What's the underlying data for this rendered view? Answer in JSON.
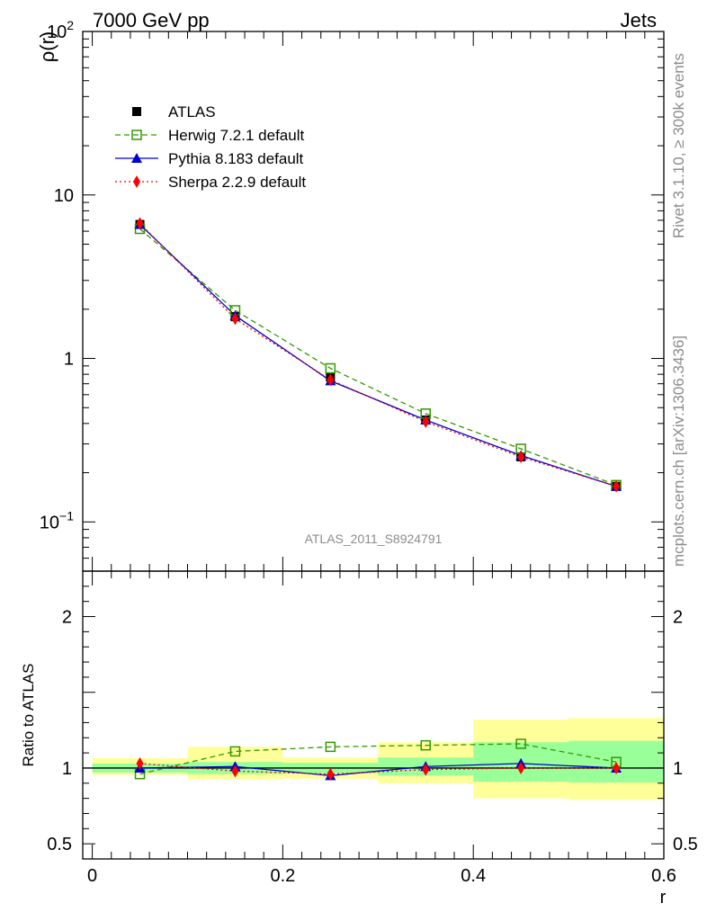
{
  "header": {
    "left_title": "7000 GeV pp",
    "right_title": "Jets"
  },
  "side_texts": {
    "rivet": "Rivet 3.1.10, ≥ 300k events",
    "source": "mcplots.cern.ch [arXiv:1306.3436]"
  },
  "analysis_label": "ATLAS_2011_S8924791",
  "colors": {
    "atlas": "#000000",
    "herwig": "#339900",
    "pythia": "#0000cc",
    "sherpa": "#ff0000",
    "band_inner": "#99ff99",
    "band_outer": "#ffff99"
  },
  "legend": [
    {
      "key": "atlas",
      "label": "ATLAS"
    },
    {
      "key": "herwig",
      "label": "Herwig 7.2.1 default"
    },
    {
      "key": "pythia",
      "label": "Pythia 8.183 default"
    },
    {
      "key": "sherpa",
      "label": "Sherpa 2.2.9 default"
    }
  ],
  "chart_data": [
    {
      "type": "line",
      "panel": "main",
      "yscale": "log",
      "ylabel": "ρ(r)",
      "ylim": [
        0.05,
        100
      ],
      "xlim": [
        -0.01,
        0.6
      ],
      "yticks": [
        {
          "value": 0.1,
          "label": "10",
          "sup": "−1"
        },
        {
          "value": 1,
          "label": "1",
          "sup": ""
        },
        {
          "value": 10,
          "label": "10",
          "sup": ""
        },
        {
          "value": 100,
          "label": "10",
          "sup": "2"
        }
      ],
      "x": [
        0.05,
        0.15,
        0.25,
        0.35,
        0.45,
        0.55
      ],
      "series": [
        {
          "key": "atlas",
          "name": "ATLAS",
          "values": [
            6.6,
            1.8,
            0.77,
            0.42,
            0.25,
            0.165
          ]
        },
        {
          "key": "herwig",
          "name": "Herwig 7.2.1 default",
          "values": [
            6.2,
            1.97,
            0.87,
            0.46,
            0.28,
            0.168
          ]
        },
        {
          "key": "pythia",
          "name": "Pythia 8.183 default",
          "values": [
            6.6,
            1.83,
            0.73,
            0.42,
            0.255,
            0.165
          ]
        },
        {
          "key": "sherpa",
          "name": "Sherpa 2.2.9 default",
          "values": [
            6.7,
            1.75,
            0.74,
            0.41,
            0.25,
            0.165
          ]
        }
      ]
    },
    {
      "type": "line",
      "panel": "ratio",
      "ylabel": "Ratio to ATLAS",
      "xlabel": "r",
      "ylim": [
        0.4,
        2.3
      ],
      "xlim": [
        -0.01,
        0.6
      ],
      "yticks": [
        {
          "value": 0.5,
          "label": "0.5"
        },
        {
          "value": 1,
          "label": "1"
        },
        {
          "value": 2,
          "label": "2"
        }
      ],
      "xticks": [
        {
          "value": 0,
          "label": "0"
        },
        {
          "value": 0.2,
          "label": "0.2"
        },
        {
          "value": 0.4,
          "label": "0.4"
        },
        {
          "value": 0.6,
          "label": "0.6"
        }
      ],
      "bin_edges": [
        0.0,
        0.1,
        0.2,
        0.3,
        0.4,
        0.5,
        0.6
      ],
      "band_inner": [
        [
          0.97,
          1.03
        ],
        [
          0.96,
          1.04
        ],
        [
          0.965,
          1.035
        ],
        [
          0.95,
          1.07
        ],
        [
          0.91,
          1.17
        ],
        [
          0.905,
          1.18
        ]
      ],
      "band_outer": [
        [
          0.955,
          1.065
        ],
        [
          0.925,
          1.14
        ],
        [
          0.93,
          1.07
        ],
        [
          0.9,
          1.17
        ],
        [
          0.8,
          1.32
        ],
        [
          0.79,
          1.33
        ]
      ],
      "x": [
        0.05,
        0.15,
        0.25,
        0.35,
        0.45,
        0.55
      ],
      "series": [
        {
          "key": "herwig",
          "name": "Herwig 7.2.1 default",
          "values": [
            0.96,
            1.11,
            1.14,
            1.15,
            1.16,
            1.04
          ]
        },
        {
          "key": "pythia",
          "name": "Pythia 8.183 default",
          "values": [
            1.0,
            1.01,
            0.95,
            1.01,
            1.03,
            1.0
          ],
          "errors": [
            0.015,
            0.02,
            0.025,
            0.03,
            0.03,
            0.02
          ]
        },
        {
          "key": "sherpa",
          "name": "Sherpa 2.2.9 default",
          "values": [
            1.03,
            0.98,
            0.96,
            0.99,
            1.0,
            1.0
          ]
        }
      ]
    }
  ]
}
